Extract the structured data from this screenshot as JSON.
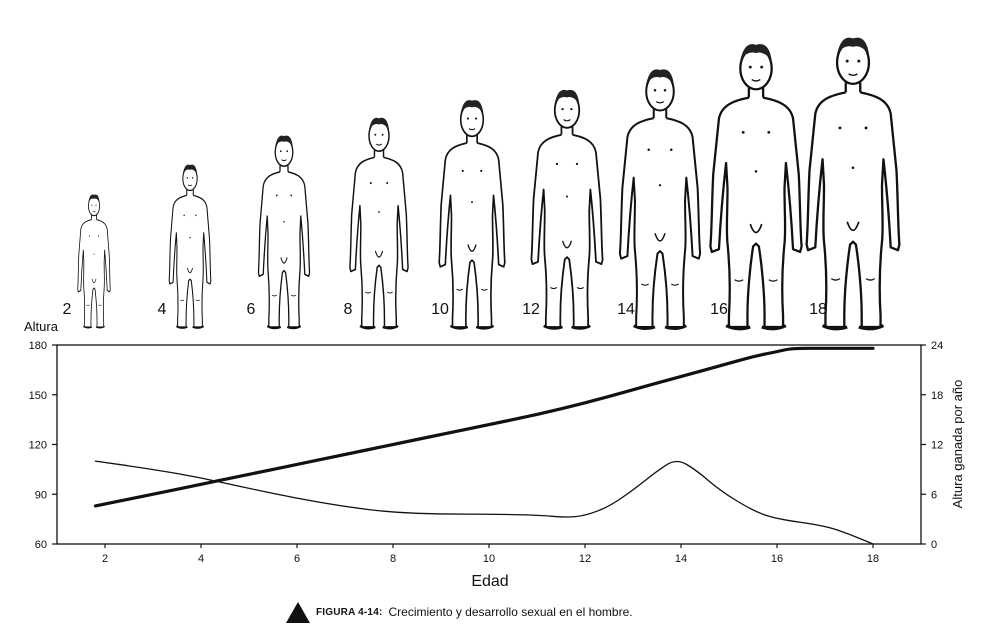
{
  "chart_data": {
    "type": "line",
    "title": "",
    "xlabel": "Edad",
    "ylabel_left": "Altura",
    "ylabel_right": "Altura ganada por año",
    "xlim": [
      1,
      19
    ],
    "xticks": [
      2,
      4,
      6,
      8,
      10,
      12,
      14,
      16,
      18
    ],
    "ylim_left": [
      60,
      180
    ],
    "yticks_left": [
      60,
      90,
      120,
      150,
      180
    ],
    "ylim_right": [
      0,
      24
    ],
    "yticks_right": [
      0,
      6,
      12,
      18,
      24
    ],
    "grid": false,
    "series": [
      {
        "axis": "left",
        "line_style": "thick",
        "x": [
          1.8,
          3,
          4,
          5,
          6,
          7,
          8,
          9,
          10,
          11,
          12,
          13,
          14,
          15,
          15.5,
          16,
          16.3,
          17,
          18
        ],
        "values": [
          83,
          90,
          96,
          102,
          108,
          114,
          120,
          126,
          132,
          138,
          145,
          153,
          161,
          169,
          173,
          176,
          178,
          178,
          178
        ]
      },
      {
        "axis": "right",
        "line_style": "thin",
        "x": [
          1.8,
          3,
          4,
          5,
          6,
          7,
          8,
          9,
          10,
          11,
          11.6,
          12,
          12.5,
          13,
          13.5,
          13.9,
          14.3,
          14.8,
          15.5,
          16,
          17,
          17.5,
          18
        ],
        "values": [
          10,
          9,
          8,
          6.7,
          5.5,
          4.5,
          3.8,
          3.6,
          3.6,
          3.5,
          3.2,
          3.4,
          4.5,
          6.5,
          8.8,
          10.3,
          9,
          6.5,
          4,
          3,
          2.2,
          1.2,
          0
        ]
      }
    ]
  },
  "figures": {
    "ages": [
      "2",
      "4",
      "6",
      "8",
      "10",
      "12",
      "14",
      "16",
      "18"
    ]
  },
  "caption": {
    "label": "FIGURA 4-14:",
    "text": "Crecimiento y desarrollo sexual en el hombre."
  }
}
